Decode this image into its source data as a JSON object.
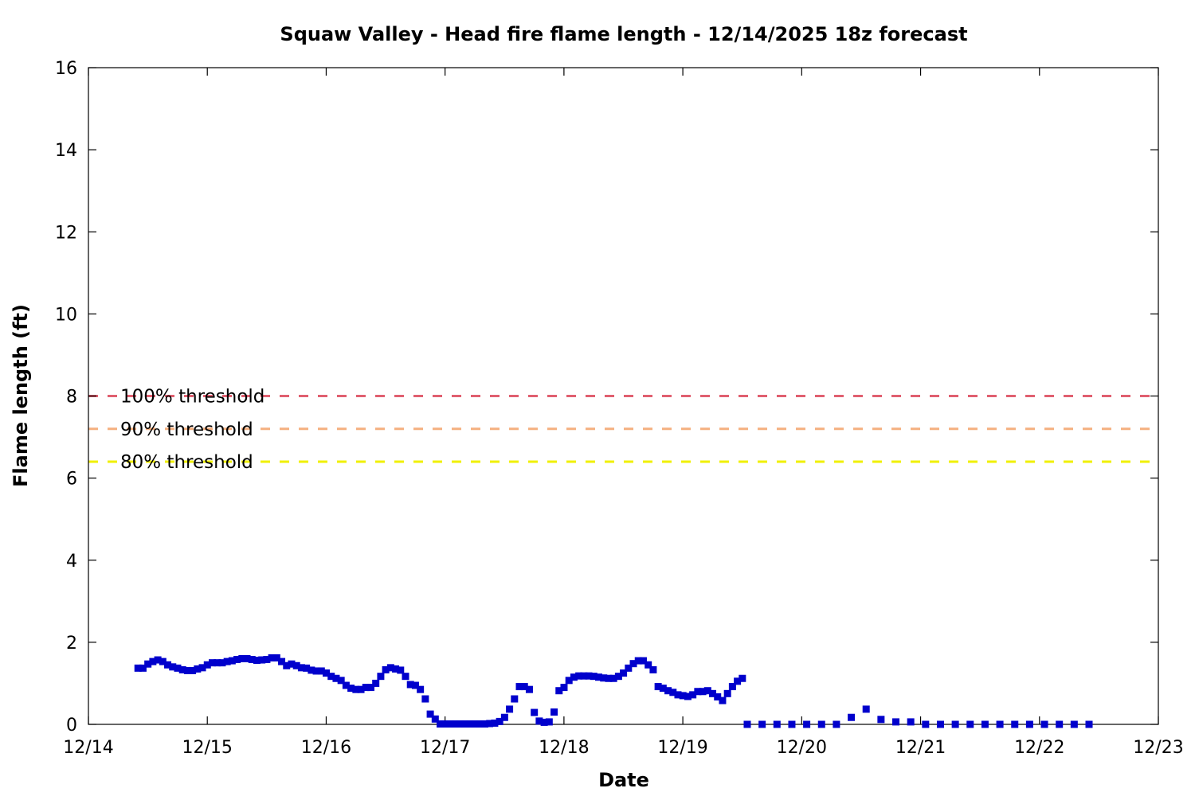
{
  "chart_data": {
    "type": "scatter",
    "title": "Squaw Valley - Head fire flame length - 12/14/2025 18z forecast",
    "xlabel": "Date",
    "ylabel": "Flame length (ft)",
    "x_unit": "days after 12/14 00z",
    "xlim": [
      0,
      9
    ],
    "ylim": [
      0,
      16
    ],
    "x_ticks": [
      {
        "value": 0,
        "label": "12/14"
      },
      {
        "value": 1,
        "label": "12/15"
      },
      {
        "value": 2,
        "label": "12/16"
      },
      {
        "value": 3,
        "label": "12/17"
      },
      {
        "value": 4,
        "label": "12/18"
      },
      {
        "value": 5,
        "label": "12/19"
      },
      {
        "value": 6,
        "label": "12/20"
      },
      {
        "value": 7,
        "label": "12/21"
      },
      {
        "value": 8,
        "label": "12/22"
      },
      {
        "value": 9,
        "label": "12/23"
      }
    ],
    "y_ticks": [
      0,
      2,
      4,
      6,
      8,
      10,
      12,
      14,
      16
    ],
    "grid": false,
    "legend_position": "left",
    "thresholds": [
      {
        "name": "100% threshold",
        "value": 8.0,
        "color": "#e06070"
      },
      {
        "name": "90% threshold",
        "value": 7.2,
        "color": "#f5b080"
      },
      {
        "name": "80% threshold",
        "value": 6.4,
        "color": "#f0f000"
      }
    ],
    "series": [
      {
        "marker_color": "#0000cc",
        "hourly": {
          "x_start": 0.417,
          "x_step": 0.04167,
          "values": [
            1.37,
            1.37,
            1.47,
            1.53,
            1.57,
            1.53,
            1.45,
            1.4,
            1.37,
            1.33,
            1.31,
            1.31,
            1.35,
            1.38,
            1.45,
            1.5,
            1.5,
            1.5,
            1.53,
            1.55,
            1.58,
            1.6,
            1.6,
            1.58,
            1.56,
            1.57,
            1.58,
            1.62,
            1.62,
            1.53,
            1.43,
            1.47,
            1.43,
            1.38,
            1.37,
            1.32,
            1.3,
            1.3,
            1.25,
            1.17,
            1.12,
            1.07,
            0.95,
            0.88,
            0.85,
            0.85,
            0.9,
            0.9,
            1.0,
            1.17,
            1.33,
            1.38,
            1.35,
            1.32,
            1.17,
            0.97,
            0.95,
            0.85,
            0.62,
            0.25,
            0.13,
            0.01,
            0.01,
            0.01,
            0.01,
            0.01,
            0.01,
            0.01,
            0.01,
            0.01,
            0.01,
            0.02,
            0.03,
            0.07,
            0.17,
            0.37,
            0.62,
            0.92,
            0.92,
            0.85,
            0.29,
            0.08,
            0.05,
            0.06,
            0.3,
            0.82,
            0.9,
            1.07,
            1.15,
            1.18,
            1.18,
            1.18,
            1.17,
            1.15,
            1.13,
            1.12,
            1.12,
            1.17,
            1.25,
            1.37,
            1.48,
            1.55,
            1.55,
            1.45,
            1.33,
            0.92,
            0.88,
            0.82,
            0.78,
            0.72,
            0.7,
            0.68,
            0.72,
            0.8,
            0.8,
            0.82,
            0.75,
            0.67,
            0.58,
            0.75,
            0.92,
            1.05,
            1.12
          ]
        },
        "points": [
          [
            5.542,
            0.0
          ],
          [
            5.667,
            0.0
          ],
          [
            5.792,
            0.0
          ],
          [
            5.917,
            0.0
          ],
          [
            6.042,
            0.0
          ],
          [
            6.167,
            0.0
          ],
          [
            6.292,
            0.0
          ],
          [
            6.417,
            0.17
          ],
          [
            6.542,
            0.37
          ],
          [
            6.667,
            0.12
          ],
          [
            6.792,
            0.06
          ],
          [
            6.917,
            0.06
          ],
          [
            7.042,
            0.0
          ],
          [
            7.167,
            0.0
          ],
          [
            7.292,
            0.0
          ],
          [
            7.417,
            0.0
          ],
          [
            7.542,
            0.0
          ],
          [
            7.667,
            0.0
          ],
          [
            7.792,
            0.0
          ],
          [
            7.917,
            0.0
          ],
          [
            8.042,
            0.0
          ],
          [
            8.167,
            0.0
          ],
          [
            8.292,
            0.0
          ],
          [
            8.417,
            0.0
          ]
        ]
      }
    ]
  }
}
